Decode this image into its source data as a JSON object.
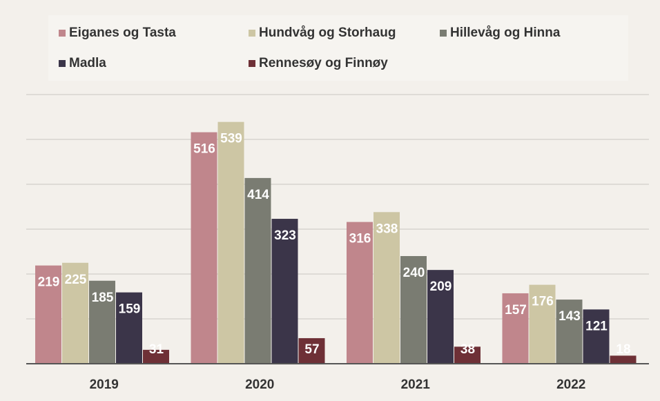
{
  "chart_data": {
    "type": "bar",
    "categories": [
      "2019",
      "2020",
      "2021",
      "2022"
    ],
    "series": [
      {
        "name": "Eiganes og Tasta",
        "color": "#c0868c",
        "values": [
          219,
          516,
          316,
          157
        ]
      },
      {
        "name": "Hundvåg og Storhaug",
        "color": "#cdc6a4",
        "values": [
          225,
          539,
          338,
          176
        ]
      },
      {
        "name": "Hillevåg og Hinna",
        "color": "#7a7c72",
        "values": [
          185,
          414,
          240,
          143
        ]
      },
      {
        "name": "Madla",
        "color": "#3b3549",
        "values": [
          159,
          323,
          209,
          121
        ]
      },
      {
        "name": "Rennesøy og Finnøy",
        "color": "#6e3036",
        "values": [
          31,
          57,
          38,
          18
        ]
      }
    ],
    "ylim": [
      0,
      600
    ],
    "yticks": [
      100,
      200,
      300,
      400,
      500,
      600
    ],
    "grid": true,
    "legend": "top"
  }
}
